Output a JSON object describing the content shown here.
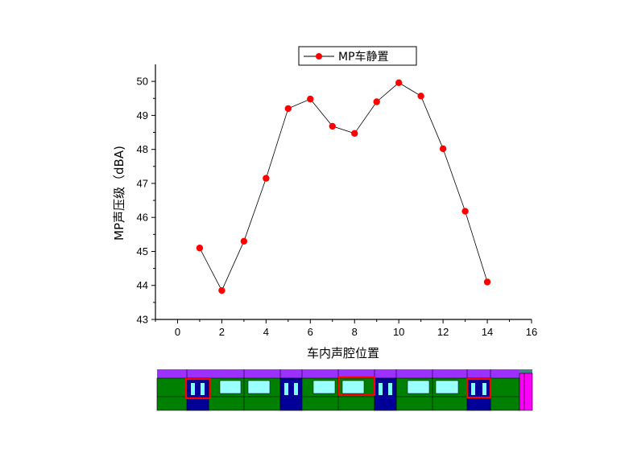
{
  "chart_data": {
    "type": "line",
    "title": "",
    "xlabel": "车内声腔位置",
    "ylabel": "MP声压级（dBA)",
    "xlim": [
      -1,
      16
    ],
    "ylim": [
      43,
      50.5
    ],
    "x_ticks": [
      0,
      2,
      4,
      6,
      8,
      10,
      12,
      14,
      16
    ],
    "y_ticks": [
      43,
      44,
      45,
      46,
      47,
      48,
      49,
      50
    ],
    "grid": false,
    "legend_position": "top-center",
    "series": [
      {
        "name": "MP车静置",
        "color": "#ff0000",
        "line_color": "#000000",
        "marker": "circle",
        "x": [
          1,
          2,
          3,
          4,
          5,
          6,
          7,
          8,
          9,
          10,
          11,
          12,
          13,
          14
        ],
        "y": [
          45.1,
          43.85,
          45.3,
          47.15,
          49.2,
          49.48,
          48.68,
          48.47,
          49.4,
          49.96,
          49.57,
          48.02,
          46.18,
          44.1
        ]
      }
    ]
  },
  "train_diagram": {
    "colors": {
      "roof": "#9b30ff",
      "body": "#008000",
      "door": "#000099",
      "door_glass": "#7fffff",
      "window": "#99ffff",
      "highlight": "#ff0000",
      "end_cap": "#ff00ff"
    }
  }
}
